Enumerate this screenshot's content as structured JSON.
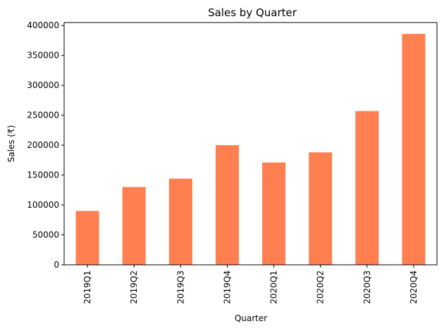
{
  "chart_data": {
    "type": "bar",
    "title": "Sales by Quarter",
    "xlabel": "Quarter",
    "ylabel": "Sales (₹)",
    "categories": [
      "2019Q1",
      "2019Q2",
      "2019Q3",
      "2019Q4",
      "2020Q1",
      "2020Q2",
      "2020Q3",
      "2020Q4"
    ],
    "values": [
      90000,
      130000,
      144000,
      200000,
      171000,
      188000,
      257000,
      386000
    ],
    "yticks": [
      0,
      50000,
      100000,
      150000,
      200000,
      250000,
      300000,
      350000,
      400000
    ],
    "ytick_labels": [
      "0",
      "50000",
      "100000",
      "150000",
      "200000",
      "250000",
      "300000",
      "350000",
      "400000"
    ],
    "ylim": [
      0,
      405000
    ],
    "bar_color": "#ff7f50",
    "grid": false,
    "legend": "none"
  }
}
